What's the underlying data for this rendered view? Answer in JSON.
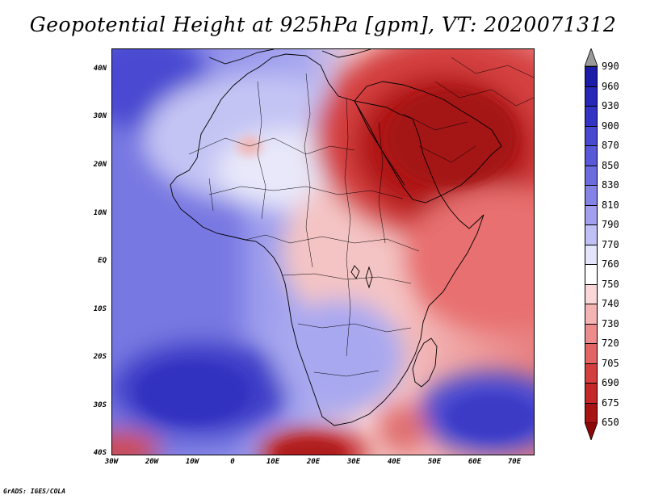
{
  "title": "Geopotential Height at 925hPa [gpm], VT: 2020071312",
  "footer": "GrADS: IGES/COLA",
  "map": {
    "lat_labels": [
      "40N",
      "30N",
      "20N",
      "10N",
      "EQ",
      "10S",
      "20S",
      "30S",
      "40S"
    ],
    "lon_labels": [
      "30W",
      "20W",
      "10W",
      "0",
      "10E",
      "20E",
      "30E",
      "40E",
      "50E",
      "60E",
      "70E"
    ],
    "colors": {
      "deep_blue": "#3b3bd0",
      "mid_blue": "#7070e0",
      "light_blue": "#a8a8f0",
      "pale_blue": "#d8d8f8",
      "white": "#ffffff",
      "pale_red": "#f8d0d0",
      "light_red": "#f0a0a0",
      "mid_red": "#e06060",
      "deep_red": "#c02020",
      "darkest_red": "#a01010",
      "land_outline": "#000000"
    }
  },
  "colorbar": {
    "labels": [
      "990",
      "960",
      "930",
      "900",
      "870",
      "850",
      "830",
      "810",
      "790",
      "770",
      "760",
      "750",
      "740",
      "730",
      "720",
      "705",
      "690",
      "675",
      "650"
    ],
    "colors": [
      "#9a9a9a",
      "#1c1ca8",
      "#2828b8",
      "#3434c4",
      "#4848d0",
      "#5858d8",
      "#6c6ce0",
      "#8484e6",
      "#a0a0ee",
      "#c0c0f4",
      "#e4e4fa",
      "#ffffff",
      "#fad8d8",
      "#f4b4b4",
      "#ec8c8c",
      "#e26464",
      "#d44040",
      "#c42828",
      "#a81414",
      "#8c0808"
    ]
  }
}
